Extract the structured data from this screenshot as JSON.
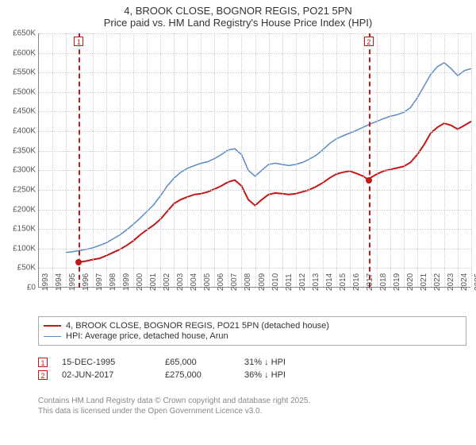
{
  "title": {
    "line1": "4, BROOK CLOSE, BOGNOR REGIS, PO21 5PN",
    "line2": "Price paid vs. HM Land Registry's House Price Index (HPI)"
  },
  "chart": {
    "type": "line",
    "background_color": "#ffffff",
    "grid_color": "#cccccc",
    "axis_color": "#888888",
    "ylim": [
      0,
      650000
    ],
    "ytick_step": 50000,
    "ytick_labels": [
      "£0",
      "£50K",
      "£100K",
      "£150K",
      "£200K",
      "£250K",
      "£300K",
      "£350K",
      "£400K",
      "£450K",
      "£500K",
      "£550K",
      "£600K",
      "£650K"
    ],
    "xlim": [
      1993,
      2025
    ],
    "xtick_step": 1,
    "xtick_labels": [
      "1993",
      "1994",
      "1995",
      "1996",
      "1997",
      "1998",
      "1999",
      "2000",
      "2001",
      "2002",
      "2003",
      "2004",
      "2005",
      "2006",
      "2007",
      "2008",
      "2009",
      "2010",
      "2011",
      "2012",
      "2013",
      "2014",
      "2015",
      "2016",
      "2017",
      "2018",
      "2019",
      "2020",
      "2021",
      "2022",
      "2023",
      "2024",
      "2025"
    ],
    "label_fontsize": 10,
    "title_fontsize": 13,
    "series": [
      {
        "name": "price_paid",
        "label": "4, BROOK CLOSE, BOGNOR REGIS, PO21 5PN (detached house)",
        "color": "#c41818",
        "line_width": 2,
        "points": [
          [
            1995.96,
            65000
          ],
          [
            1996.5,
            68000
          ],
          [
            1997,
            72000
          ],
          [
            1997.5,
            75000
          ],
          [
            1998,
            82000
          ],
          [
            1998.5,
            90000
          ],
          [
            1999,
            98000
          ],
          [
            1999.5,
            108000
          ],
          [
            2000,
            120000
          ],
          [
            2000.5,
            135000
          ],
          [
            2001,
            148000
          ],
          [
            2001.5,
            160000
          ],
          [
            2002,
            175000
          ],
          [
            2002.5,
            195000
          ],
          [
            2003,
            215000
          ],
          [
            2003.5,
            225000
          ],
          [
            2004,
            232000
          ],
          [
            2004.5,
            238000
          ],
          [
            2005,
            240000
          ],
          [
            2005.5,
            245000
          ],
          [
            2006,
            252000
          ],
          [
            2006.5,
            260000
          ],
          [
            2007,
            270000
          ],
          [
            2007.5,
            275000
          ],
          [
            2008,
            260000
          ],
          [
            2008.5,
            225000
          ],
          [
            2009,
            210000
          ],
          [
            2009.5,
            225000
          ],
          [
            2010,
            238000
          ],
          [
            2010.5,
            242000
          ],
          [
            2011,
            240000
          ],
          [
            2011.5,
            238000
          ],
          [
            2012,
            240000
          ],
          [
            2012.5,
            245000
          ],
          [
            2013,
            250000
          ],
          [
            2013.5,
            258000
          ],
          [
            2014,
            268000
          ],
          [
            2014.5,
            280000
          ],
          [
            2015,
            290000
          ],
          [
            2015.5,
            295000
          ],
          [
            2016,
            298000
          ],
          [
            2016.5,
            292000
          ],
          [
            2017,
            285000
          ],
          [
            2017.42,
            275000
          ],
          [
            2017.5,
            280000
          ],
          [
            2018,
            290000
          ],
          [
            2018.5,
            298000
          ],
          [
            2019,
            302000
          ],
          [
            2019.5,
            306000
          ],
          [
            2020,
            310000
          ],
          [
            2020.5,
            320000
          ],
          [
            2021,
            340000
          ],
          [
            2021.5,
            365000
          ],
          [
            2022,
            395000
          ],
          [
            2022.5,
            410000
          ],
          [
            2023,
            420000
          ],
          [
            2023.5,
            415000
          ],
          [
            2024,
            405000
          ],
          [
            2024.5,
            415000
          ],
          [
            2025,
            425000
          ]
        ]
      },
      {
        "name": "hpi",
        "label": "HPI: Average price, detached house, Arun",
        "color": "#5a8bc4",
        "line_width": 1.5,
        "points": [
          [
            1995,
            90000
          ],
          [
            1995.5,
            92000
          ],
          [
            1996,
            95000
          ],
          [
            1996.5,
            98000
          ],
          [
            1997,
            102000
          ],
          [
            1997.5,
            108000
          ],
          [
            1998,
            115000
          ],
          [
            1998.5,
            125000
          ],
          [
            1999,
            135000
          ],
          [
            1999.5,
            148000
          ],
          [
            2000,
            162000
          ],
          [
            2000.5,
            178000
          ],
          [
            2001,
            195000
          ],
          [
            2001.5,
            212000
          ],
          [
            2002,
            235000
          ],
          [
            2002.5,
            260000
          ],
          [
            2003,
            280000
          ],
          [
            2003.5,
            295000
          ],
          [
            2004,
            305000
          ],
          [
            2004.5,
            312000
          ],
          [
            2005,
            318000
          ],
          [
            2005.5,
            322000
          ],
          [
            2006,
            330000
          ],
          [
            2006.5,
            340000
          ],
          [
            2007,
            352000
          ],
          [
            2007.5,
            355000
          ],
          [
            2008,
            340000
          ],
          [
            2008.5,
            300000
          ],
          [
            2009,
            285000
          ],
          [
            2009.5,
            300000
          ],
          [
            2010,
            315000
          ],
          [
            2010.5,
            318000
          ],
          [
            2011,
            315000
          ],
          [
            2011.5,
            312000
          ],
          [
            2012,
            315000
          ],
          [
            2012.5,
            320000
          ],
          [
            2013,
            328000
          ],
          [
            2013.5,
            338000
          ],
          [
            2014,
            352000
          ],
          [
            2014.5,
            368000
          ],
          [
            2015,
            380000
          ],
          [
            2015.5,
            388000
          ],
          [
            2016,
            395000
          ],
          [
            2016.5,
            402000
          ],
          [
            2017,
            410000
          ],
          [
            2017.5,
            418000
          ],
          [
            2018,
            425000
          ],
          [
            2018.5,
            432000
          ],
          [
            2019,
            438000
          ],
          [
            2019.5,
            442000
          ],
          [
            2020,
            448000
          ],
          [
            2020.5,
            460000
          ],
          [
            2021,
            485000
          ],
          [
            2021.5,
            515000
          ],
          [
            2022,
            545000
          ],
          [
            2022.5,
            565000
          ],
          [
            2023,
            575000
          ],
          [
            2023.5,
            560000
          ],
          [
            2024,
            542000
          ],
          [
            2024.5,
            555000
          ],
          [
            2025,
            560000
          ]
        ]
      }
    ],
    "markers": [
      {
        "id": "1",
        "x": 1995.96,
        "color": "#c41818"
      },
      {
        "id": "2",
        "x": 2017.42,
        "color": "#c41818"
      }
    ],
    "price_points": [
      {
        "x": 1995.96,
        "y": 65000,
        "color": "#c41818"
      },
      {
        "x": 2017.42,
        "y": 275000,
        "color": "#c41818"
      }
    ]
  },
  "legend": {
    "items": [
      {
        "color": "#c41818",
        "width": 2,
        "label": "4, BROOK CLOSE, BOGNOR REGIS, PO21 5PN (detached house)"
      },
      {
        "color": "#5a8bc4",
        "width": 1.5,
        "label": "HPI: Average price, detached house, Arun"
      }
    ]
  },
  "transactions": [
    {
      "id": "1",
      "date": "15-DEC-1995",
      "price": "£65,000",
      "diff": "31% ↓ HPI",
      "marker_color": "#c41818"
    },
    {
      "id": "2",
      "date": "02-JUN-2017",
      "price": "£275,000",
      "diff": "36% ↓ HPI",
      "marker_color": "#c41818"
    }
  ],
  "footer": {
    "line1": "Contains HM Land Registry data © Crown copyright and database right 2025.",
    "line2": "This data is licensed under the Open Government Licence v3.0."
  }
}
